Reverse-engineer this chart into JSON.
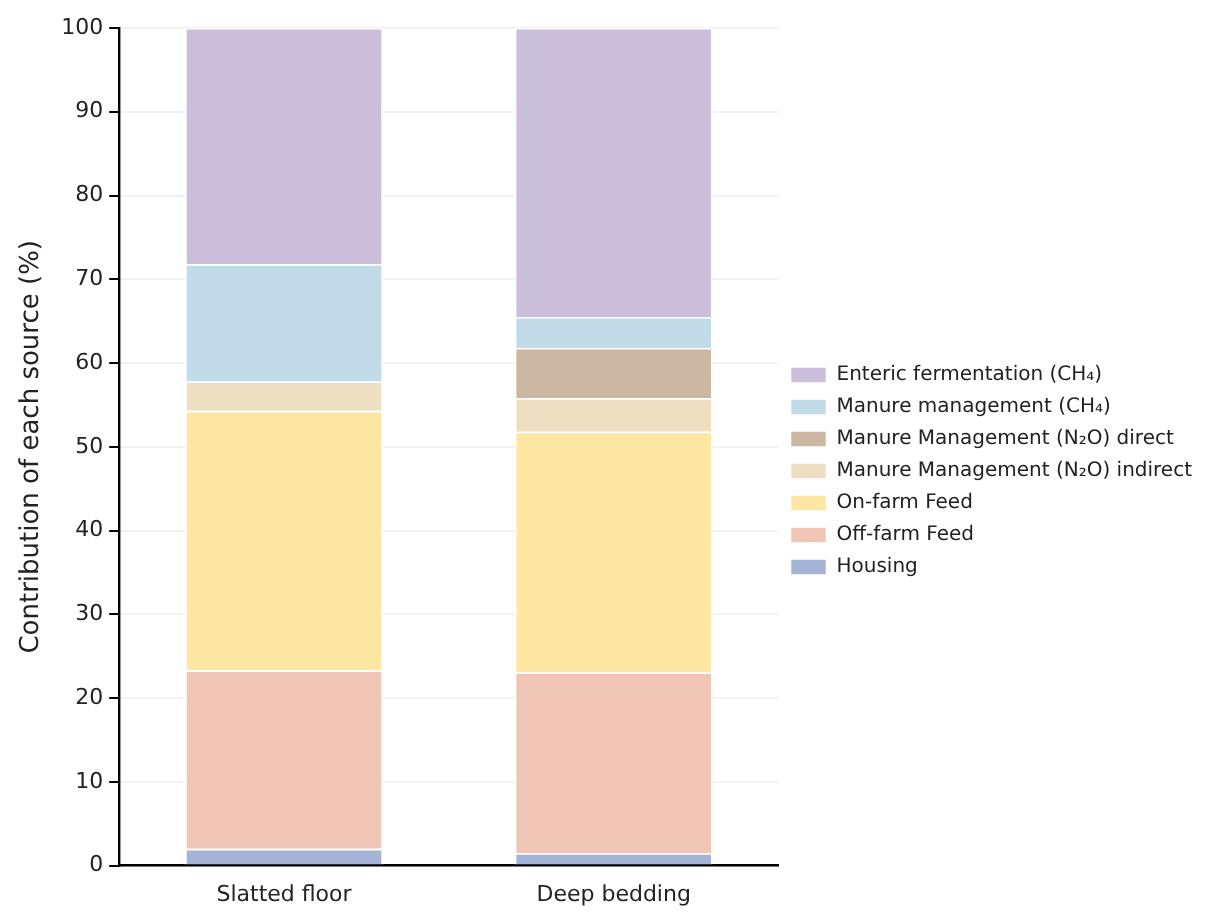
{
  "chart_data": {
    "type": "bar",
    "stacked": true,
    "ylabel": "Contribution of each source (%)",
    "categories": [
      "Slatted floor",
      "Deep bedding"
    ],
    "series": [
      {
        "name": "Housing",
        "color": "#a3b4d6",
        "values": [
          2,
          1.5
        ]
      },
      {
        "name": "Off-farm Feed",
        "color": "#f1c6b6",
        "values": [
          21.3,
          21.6
        ]
      },
      {
        "name": "On-farm Feed",
        "color": "#fde7a3",
        "values": [
          31,
          28.7
        ]
      },
      {
        "name": "Manure Management (N₂O) indirect",
        "color": "#efdfc2",
        "values": [
          3.5,
          4
        ]
      },
      {
        "name": "Manure Management (N₂O) direct",
        "color": "#cbb7a2",
        "values": [
          0,
          6
        ]
      },
      {
        "name": "Manure management (CH₄)",
        "color": "#c1dbe8",
        "values": [
          14,
          3.7
        ]
      },
      {
        "name": "Enteric fermentation (CH₄)",
        "color": "#cbbfdb",
        "values": [
          28.2,
          34.5
        ]
      }
    ],
    "ylim": [
      0,
      100
    ],
    "yticks": [
      0,
      10,
      20,
      30,
      40,
      50,
      60,
      70,
      80,
      90,
      100
    ],
    "grid": "y",
    "legend": "right"
  }
}
